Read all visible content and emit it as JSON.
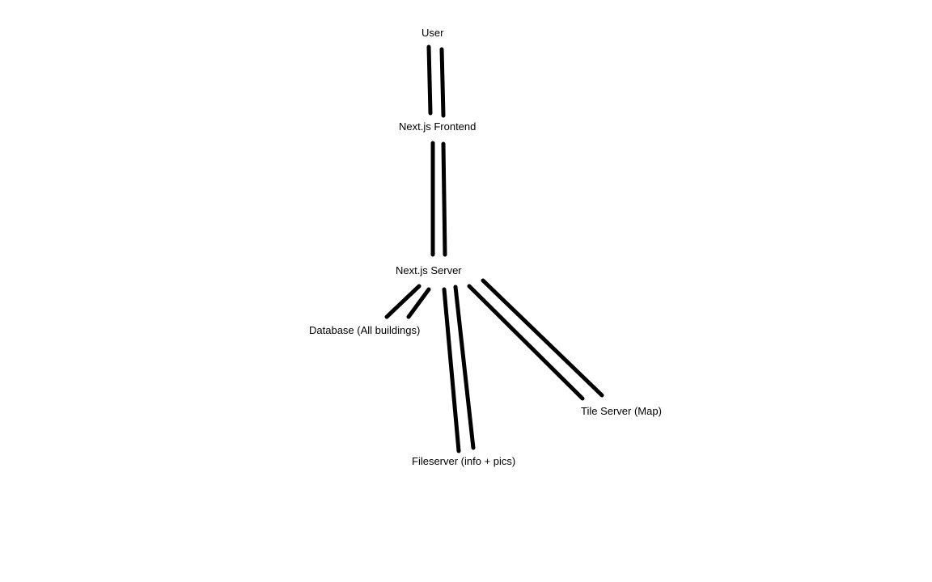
{
  "diagram": {
    "nodes": {
      "user": "User",
      "frontend": "Next.js Frontend",
      "server": "Next.js Server",
      "database": "Database (All buildings)",
      "tile_server": "Tile Server (Map)",
      "fileserver": "Fileserver (info + pics)"
    },
    "edges": [
      {
        "from": "user",
        "to": "frontend",
        "style": "double-line"
      },
      {
        "from": "frontend",
        "to": "server",
        "style": "double-line"
      },
      {
        "from": "server",
        "to": "database",
        "style": "double-line"
      },
      {
        "from": "server",
        "to": "fileserver",
        "style": "double-line"
      },
      {
        "from": "server",
        "to": "tile_server",
        "style": "double-line"
      }
    ],
    "line_color": "#000000",
    "background": "#ffffff"
  }
}
